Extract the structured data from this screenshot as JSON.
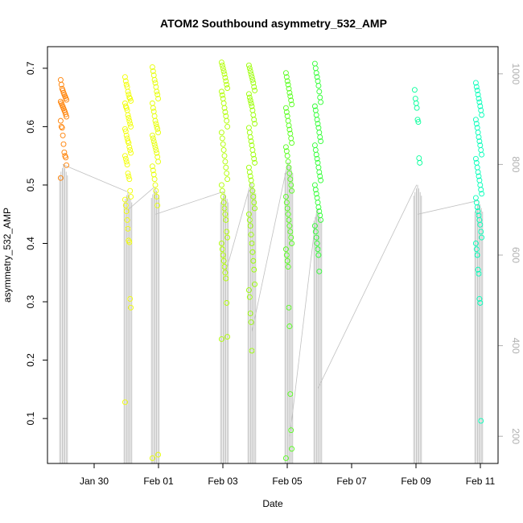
{
  "chart_data": {
    "type": "scatter",
    "title": "ATOM2 Southbound asymmetry_532_AMP",
    "xlabel": "Date",
    "ylabel": "asymmetry_532_AMP",
    "x_ticks": [
      "Jan 30",
      "Feb 01",
      "Feb 03",
      "Feb 05",
      "Feb 07",
      "Feb 09",
      "Feb 11"
    ],
    "x_tick_days": [
      0,
      2,
      4,
      6,
      8,
      10,
      12
    ],
    "x_range_days": [
      -1.45,
      12.55
    ],
    "y_ticks": [
      "0.1",
      "0.2",
      "0.3",
      "0.4",
      "0.5",
      "0.6",
      "0.7"
    ],
    "ylim": [
      0.023,
      0.737
    ],
    "y2_ticks": [
      "200",
      "400",
      "600",
      "800",
      "1000"
    ],
    "y2lim": [
      1060,
      140
    ],
    "grid": false,
    "colors": [
      "#FF7F00",
      "#FFD000",
      "#E6FF00",
      "#BFFF00",
      "#99FF00",
      "#66FF00",
      "#33FF1A",
      "#00FF66",
      "#00FFB0"
    ],
    "series": [
      {
        "day": -0.95,
        "color": "#FF7F00",
        "points": [
          0.68,
          0.672,
          0.665,
          0.662,
          0.658,
          0.655,
          0.652,
          0.649,
          0.646,
          0.643,
          0.64,
          0.637,
          0.634,
          0.631,
          0.628,
          0.625,
          0.621,
          0.617,
          0.61,
          0.6,
          0.598,
          0.585,
          0.57,
          0.556,
          0.55,
          0.547,
          0.534,
          0.512
        ]
      },
      {
        "day": 1.05,
        "color": "#F2FF00",
        "points": [
          0.685,
          0.678,
          0.672,
          0.668,
          0.66,
          0.655,
          0.65,
          0.648,
          0.644,
          0.64,
          0.635,
          0.632,
          0.628,
          0.62,
          0.615,
          0.61,
          0.605,
          0.6,
          0.596,
          0.592,
          0.585,
          0.58,
          0.575,
          0.572,
          0.565,
          0.56,
          0.555,
          0.55,
          0.545,
          0.54,
          0.535,
          0.52,
          0.515,
          0.51,
          0.49,
          0.48,
          0.475,
          0.465,
          0.455,
          0.44,
          0.425,
          0.405,
          0.402,
          0.305,
          0.29,
          0.128
        ]
      },
      {
        "day": 1.9,
        "color": "#E6FF00",
        "points": [
          0.702,
          0.695,
          0.688,
          0.68,
          0.675,
          0.668,
          0.66,
          0.655,
          0.648,
          0.64,
          0.632,
          0.626,
          0.618,
          0.61,
          0.605,
          0.6,
          0.596,
          0.59,
          0.585,
          0.58,
          0.575,
          0.57,
          0.565,
          0.56,
          0.555,
          0.548,
          0.54,
          0.532,
          0.525,
          0.518,
          0.51,
          0.5,
          0.49,
          0.48,
          0.465,
          0.038,
          0.032
        ]
      },
      {
        "day": 4.05,
        "color": "#B0FF00",
        "points": [
          0.71,
          0.705,
          0.7,
          0.695,
          0.69,
          0.684,
          0.678,
          0.672,
          0.666,
          0.66,
          0.654,
          0.648,
          0.64,
          0.632,
          0.625,
          0.618,
          0.61,
          0.6,
          0.59,
          0.58,
          0.57,
          0.56,
          0.55,
          0.54,
          0.53,
          0.52,
          0.51,
          0.5,
          0.49,
          0.48,
          0.47,
          0.46,
          0.45,
          0.44,
          0.42,
          0.41,
          0.4,
          0.39,
          0.38,
          0.37,
          0.36,
          0.35,
          0.34,
          0.298,
          0.24,
          0.236
        ]
      },
      {
        "day": 4.9,
        "color": "#99FF00",
        "points": [
          0.705,
          0.7,
          0.695,
          0.69,
          0.685,
          0.68,
          0.675,
          0.668,
          0.662,
          0.656,
          0.65,
          0.645,
          0.64,
          0.635,
          0.628,
          0.62,
          0.612,
          0.605,
          0.598,
          0.59,
          0.582,
          0.575,
          0.568,
          0.56,
          0.552,
          0.545,
          0.538,
          0.53,
          0.522,
          0.515,
          0.508,
          0.5,
          0.49,
          0.48,
          0.47,
          0.46,
          0.45,
          0.44,
          0.43,
          0.415,
          0.4,
          0.385,
          0.37,
          0.355,
          0.33,
          0.32,
          0.308,
          0.28,
          0.265,
          0.216
        ]
      },
      {
        "day": 6.05,
        "color": "#55FF1A",
        "points": [
          0.692,
          0.685,
          0.678,
          0.672,
          0.665,
          0.658,
          0.652,
          0.645,
          0.638,
          0.632,
          0.625,
          0.618,
          0.61,
          0.602,
          0.595,
          0.588,
          0.58,
          0.572,
          0.565,
          0.558,
          0.55,
          0.54,
          0.53,
          0.52,
          0.51,
          0.5,
          0.49,
          0.48,
          0.47,
          0.46,
          0.45,
          0.44,
          0.43,
          0.42,
          0.41,
          0.4,
          0.39,
          0.38,
          0.37,
          0.36,
          0.29,
          0.258,
          0.142,
          0.08,
          0.048,
          0.032
        ]
      },
      {
        "day": 6.95,
        "color": "#2EFF33",
        "points": [
          0.708,
          0.7,
          0.692,
          0.685,
          0.678,
          0.67,
          0.66,
          0.65,
          0.642,
          0.635,
          0.628,
          0.62,
          0.612,
          0.605,
          0.598,
          0.59,
          0.582,
          0.575,
          0.568,
          0.56,
          0.552,
          0.545,
          0.538,
          0.53,
          0.522,
          0.515,
          0.508,
          0.5,
          0.492,
          0.485,
          0.478,
          0.47,
          0.462,
          0.455,
          0.448,
          0.44,
          0.43,
          0.42,
          0.41,
          0.4,
          0.39,
          0.38,
          0.352
        ]
      },
      {
        "day": 10.05,
        "color": "#00FF99",
        "points": [
          0.663,
          0.648,
          0.64,
          0.632,
          0.612,
          0.608,
          0.546,
          0.538
        ]
      },
      {
        "day": 11.95,
        "color": "#00FFB8",
        "points": [
          0.675,
          0.668,
          0.662,
          0.655,
          0.648,
          0.642,
          0.635,
          0.628,
          0.62,
          0.612,
          0.605,
          0.598,
          0.59,
          0.582,
          0.575,
          0.568,
          0.56,
          0.552,
          0.545,
          0.538,
          0.53,
          0.522,
          0.515,
          0.508,
          0.5,
          0.492,
          0.485,
          0.478,
          0.47,
          0.462,
          0.455,
          0.448,
          0.44,
          0.432,
          0.42,
          0.41,
          0.4,
          0.39,
          0.38,
          0.355,
          0.348,
          0.305,
          0.298,
          0.096
        ]
      }
    ],
    "altitude_path": [
      {
        "day": -0.95,
        "alt": [
          140,
          800,
          140
        ]
      },
      {
        "day": 1.05,
        "alt": [
          140,
          740,
          700,
          140
        ]
      },
      {
        "day": 1.9,
        "alt": [
          140,
          750,
          690,
          140
        ]
      },
      {
        "day": 4.05,
        "alt": [
          140,
          740,
          680,
          560,
          140
        ]
      },
      {
        "day": 4.9,
        "alt": [
          140,
          760,
          430,
          140
        ]
      },
      {
        "day": 6.05,
        "alt": [
          140,
          805,
          310,
          200,
          140
        ]
      },
      {
        "day": 6.95,
        "alt": [
          140,
          700,
          305,
          140
        ]
      },
      {
        "day": 10.05,
        "alt": [
          140,
          755,
          690,
          140
        ]
      },
      {
        "day": 11.95,
        "alt": [
          140,
          720,
          665,
          310,
          140
        ]
      }
    ]
  }
}
